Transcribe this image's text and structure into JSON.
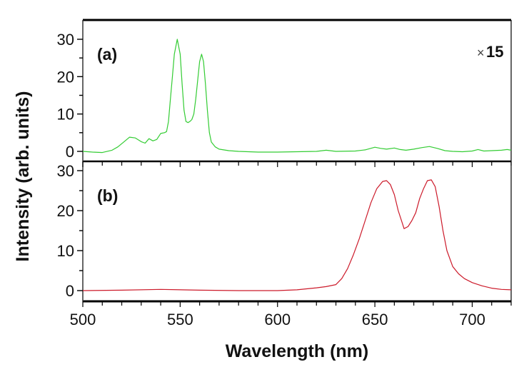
{
  "chart_data": [
    {
      "type": "line",
      "panel_label": "(a)",
      "annotation": {
        "symbol": "×",
        "value": "15"
      },
      "color": "#33cc33",
      "xlim": [
        500,
        720
      ],
      "ylim": [
        -3,
        34
      ],
      "yticks": [
        0,
        10,
        20,
        30
      ],
      "series": [
        {
          "name": "(a)",
          "x": [
            500,
            505,
            510,
            515,
            518,
            521,
            524,
            527,
            530,
            532,
            534,
            536,
            538,
            540,
            542,
            543,
            544,
            545,
            546,
            547,
            548.5,
            550,
            551,
            552,
            553,
            554,
            555,
            556,
            557,
            558,
            559,
            560,
            561,
            562,
            563,
            564,
            565,
            566,
            568,
            570,
            575,
            580,
            590,
            600,
            610,
            620,
            625,
            630,
            640,
            645,
            650,
            653,
            656,
            660,
            663,
            666,
            670,
            674,
            678,
            682,
            686,
            690,
            695,
            700,
            703,
            706,
            710,
            715,
            718,
            720
          ],
          "y": [
            0,
            -0.2,
            -0.3,
            0.3,
            1.2,
            2.5,
            3.8,
            3.6,
            2.6,
            2.2,
            3.4,
            2.8,
            3.2,
            4.8,
            5.0,
            5.3,
            8,
            14,
            20,
            26,
            30,
            26,
            18,
            11,
            8,
            7.7,
            8,
            8.5,
            10,
            14,
            19,
            24,
            26,
            24,
            18,
            11,
            5,
            2.5,
            1.2,
            0.6,
            0.2,
            0,
            -0.2,
            -0.2,
            -0.1,
            0,
            0.3,
            0,
            0.1,
            0.4,
            1.1,
            0.8,
            0.6,
            0.9,
            0.5,
            0.3,
            0.6,
            1.0,
            1.3,
            0.8,
            0.2,
            0.0,
            -0.1,
            0.1,
            0.5,
            0.1,
            0.2,
            0.3,
            0.5,
            0.3
          ]
        }
      ]
    },
    {
      "type": "line",
      "panel_label": "(b)",
      "color": "#cc1a2a",
      "xlim": [
        500,
        720
      ],
      "ylim": [
        -2.7,
        32.3
      ],
      "yticks": [
        0,
        10,
        20,
        30
      ],
      "xlabel": "Wavelength (nm)",
      "xticks": [
        500,
        550,
        600,
        650,
        700
      ],
      "series": [
        {
          "name": "(b)",
          "x": [
            500,
            520,
            540,
            560,
            580,
            600,
            610,
            620,
            625,
            630,
            633,
            636,
            639,
            642,
            645,
            648,
            651,
            654,
            656,
            658,
            660,
            662,
            664,
            665,
            667,
            669,
            671,
            673,
            675,
            677,
            679,
            681,
            683,
            685,
            687,
            690,
            693,
            696,
            700,
            705,
            710,
            715,
            720
          ],
          "y": [
            0,
            0.1,
            0.3,
            0.1,
            0,
            0,
            0.2,
            0.7,
            1.0,
            1.5,
            3,
            5.5,
            9,
            13,
            17.5,
            22,
            25.5,
            27.3,
            27.5,
            26.5,
            24,
            20,
            17,
            15.5,
            16,
            17.5,
            19.5,
            23,
            25.5,
            27.5,
            27.7,
            26,
            21,
            15,
            10,
            6,
            4.2,
            3.0,
            2.0,
            1.2,
            0.6,
            0.3,
            0.2
          ]
        }
      ]
    }
  ],
  "ylabel": "Intensity (arb. units)",
  "xlabel": "Wavelength (nm)",
  "xtick_labels": [
    "500",
    "550",
    "600",
    "650",
    "700"
  ],
  "ytick_labels_a": [
    "0",
    "10",
    "20",
    "30"
  ],
  "ytick_labels_b": [
    "0",
    "10",
    "20",
    "30"
  ]
}
